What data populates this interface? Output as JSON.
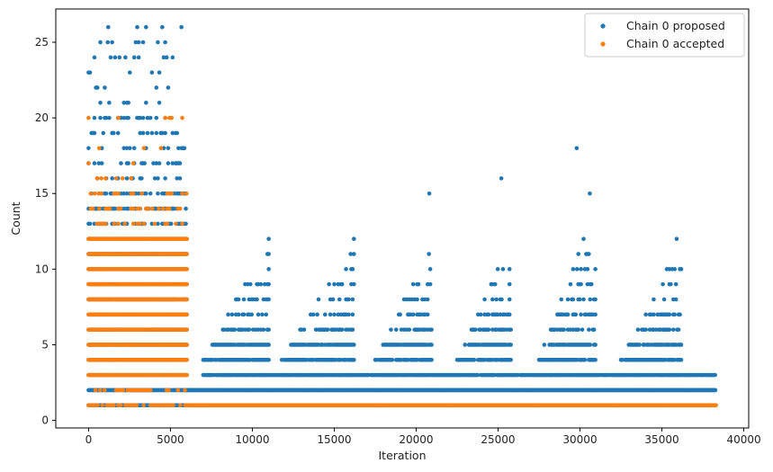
{
  "chart_data": {
    "type": "scatter",
    "title": "",
    "xlabel": "Iteration",
    "ylabel": "Count",
    "xlim": [
      -2000,
      40300
    ],
    "ylim": [
      -0.5,
      27.2
    ],
    "xticks": [
      0,
      5000,
      10000,
      15000,
      20000,
      25000,
      30000,
      35000,
      40000
    ],
    "xtick_labels": [
      "0",
      "5000",
      "10000",
      "15000",
      "20000",
      "25000",
      "30000",
      "35000",
      "40000"
    ],
    "yticks": [
      0,
      5,
      10,
      15,
      20,
      25
    ],
    "ytick_labels": [
      "0",
      "5",
      "10",
      "15",
      "20",
      "25"
    ],
    "grid": false,
    "legend_position": "top-right",
    "x_range_of_iterations": [
      0,
      38300
    ],
    "series": [
      {
        "name": "Chain 0 proposed",
        "color": "#1f77b4",
        "marker": "dot",
        "point_bands": [
          {
            "x_from": 0,
            "x_to": 6000,
            "y_values": [
              1,
              2,
              3,
              4,
              5,
              6,
              7,
              8,
              9,
              10,
              11,
              12,
              13,
              14,
              15,
              16,
              17,
              18,
              19,
              20,
              21,
              22,
              23,
              24,
              25,
              26
            ],
            "density": "dense for 1–12, sparse above"
          },
          {
            "x_from": 6000,
            "x_to": 38300,
            "y_values": [
              1,
              2,
              3
            ],
            "density": "continuous"
          },
          {
            "x_from": 7000,
            "x_to": 38300,
            "y_values": [
              4,
              5,
              6
            ],
            "density": "frequent, periodic"
          },
          {
            "x_from": 9000,
            "x_to": 38300,
            "y_values": [
              7,
              8,
              9,
              10,
              11,
              12,
              13,
              15,
              16,
              18
            ],
            "density": "sparse, periodic peaks"
          }
        ],
        "peaks": [
          {
            "x": 1200,
            "y": 26
          },
          {
            "x": 11000,
            "y": 12
          },
          {
            "x": 16000,
            "y": 11
          },
          {
            "x": 20800,
            "y": 15
          },
          {
            "x": 25200,
            "y": 16
          },
          {
            "x": 29800,
            "y": 18
          },
          {
            "x": 30600,
            "y": 15
          },
          {
            "x": 35900,
            "y": 12
          }
        ]
      },
      {
        "name": "Chain 0 accepted",
        "color": "#ff7f0e",
        "marker": "dot",
        "point_bands": [
          {
            "x_from": 0,
            "x_to": 6000,
            "y_values": [
              1,
              2,
              3,
              4,
              5,
              6,
              7,
              8,
              9,
              10,
              11,
              12,
              13,
              14,
              15,
              16,
              17,
              18,
              20
            ],
            "density": "dense for 3–12, sparse elsewhere"
          },
          {
            "x_from": 5900,
            "x_to": 38300,
            "y_values": [
              1
            ],
            "density": "continuous"
          }
        ]
      }
    ]
  }
}
